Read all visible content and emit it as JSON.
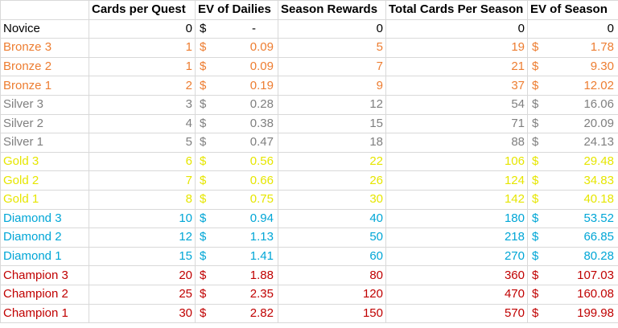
{
  "headers": [
    "",
    "Cards per Quest",
    "EV of Dailies",
    "Season Rewards",
    "Total Cards Per Season",
    "EV of Season"
  ],
  "rows": [
    {
      "tier": "Novice",
      "color": "#000000",
      "cpq": "0",
      "ev_cur": "$",
      "ev": "-",
      "season": "0",
      "total": "0",
      "evs_cur": "",
      "evs": "0"
    },
    {
      "tier": "Bronze 3",
      "color": "#ed7d31",
      "cpq": "1",
      "ev_cur": "$",
      "ev": "0.09",
      "season": "5",
      "total": "19",
      "evs_cur": "$",
      "evs": "1.78"
    },
    {
      "tier": "Bronze 2",
      "color": "#ed7d31",
      "cpq": "1",
      "ev_cur": "$",
      "ev": "0.09",
      "season": "7",
      "total": "21",
      "evs_cur": "$",
      "evs": "9.30"
    },
    {
      "tier": "Bronze 1",
      "color": "#ed7d31",
      "cpq": "2",
      "ev_cur": "$",
      "ev": "0.19",
      "season": "9",
      "total": "37",
      "evs_cur": "$",
      "evs": "12.02"
    },
    {
      "tier": "Silver 3",
      "color": "#7f7f7f",
      "cpq": "3",
      "ev_cur": "$",
      "ev": "0.28",
      "season": "12",
      "total": "54",
      "evs_cur": "$",
      "evs": "16.06"
    },
    {
      "tier": "Silver 2",
      "color": "#7f7f7f",
      "cpq": "4",
      "ev_cur": "$",
      "ev": "0.38",
      "season": "15",
      "total": "71",
      "evs_cur": "$",
      "evs": "20.09"
    },
    {
      "tier": "Silver 1",
      "color": "#7f7f7f",
      "cpq": "5",
      "ev_cur": "$",
      "ev": "0.47",
      "season": "18",
      "total": "88",
      "evs_cur": "$",
      "evs": "24.13"
    },
    {
      "tier": "Gold 3",
      "color": "#e6e600",
      "cpq": "6",
      "ev_cur": "$",
      "ev": "0.56",
      "season": "22",
      "total": "106",
      "evs_cur": "$",
      "evs": "29.48"
    },
    {
      "tier": "Gold 2",
      "color": "#e6e600",
      "cpq": "7",
      "ev_cur": "$",
      "ev": "0.66",
      "season": "26",
      "total": "124",
      "evs_cur": "$",
      "evs": "34.83"
    },
    {
      "tier": "Gold 1",
      "color": "#e6e600",
      "cpq": "8",
      "ev_cur": "$",
      "ev": "0.75",
      "season": "30",
      "total": "142",
      "evs_cur": "$",
      "evs": "40.18"
    },
    {
      "tier": "Diamond 3",
      "color": "#00a6d6",
      "cpq": "10",
      "ev_cur": "$",
      "ev": "0.94",
      "season": "40",
      "total": "180",
      "evs_cur": "$",
      "evs": "53.52"
    },
    {
      "tier": "Diamond 2",
      "color": "#00a6d6",
      "cpq": "12",
      "ev_cur": "$",
      "ev": "1.13",
      "season": "50",
      "total": "218",
      "evs_cur": "$",
      "evs": "66.85"
    },
    {
      "tier": "Diamond 1",
      "color": "#00a6d6",
      "cpq": "15",
      "ev_cur": "$",
      "ev": "1.41",
      "season": "60",
      "total": "270",
      "evs_cur": "$",
      "evs": "80.28"
    },
    {
      "tier": "Champion 3",
      "color": "#c00000",
      "cpq": "20",
      "ev_cur": "$",
      "ev": "1.88",
      "season": "80",
      "total": "360",
      "evs_cur": "$",
      "evs": "107.03"
    },
    {
      "tier": "Champion 2",
      "color": "#c00000",
      "cpq": "25",
      "ev_cur": "$",
      "ev": "2.35",
      "season": "120",
      "total": "470",
      "evs_cur": "$",
      "evs": "160.08"
    },
    {
      "tier": "Champion 1",
      "color": "#c00000",
      "cpq": "30",
      "ev_cur": "$",
      "ev": "2.82",
      "season": "150",
      "total": "570",
      "evs_cur": "$",
      "evs": "199.98"
    }
  ]
}
